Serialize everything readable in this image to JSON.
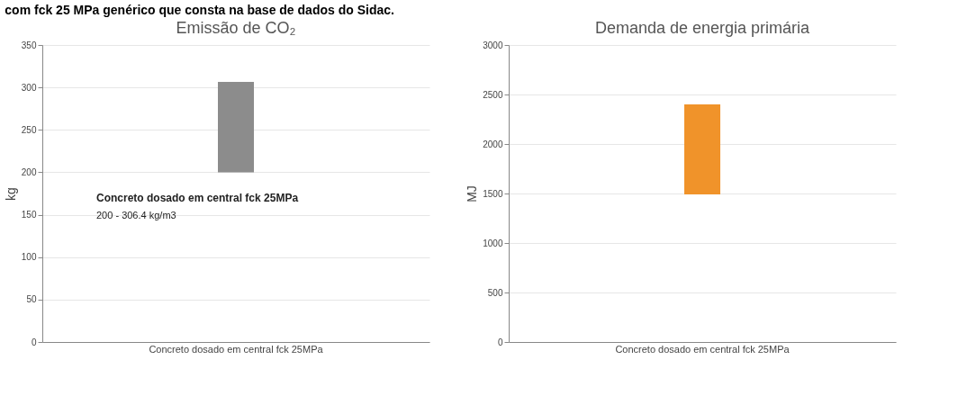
{
  "chart_data": [
    {
      "type": "bar",
      "title": "Emissão de CO₂",
      "ylabel": "kg",
      "categories": [
        "Concreto dosado em central fck 25MPa"
      ],
      "base": [
        200
      ],
      "values": [
        106.4
      ],
      "colors": [
        "#8c8c8c"
      ],
      "ylim": [
        0,
        350
      ],
      "yticks": [
        0,
        50,
        100,
        150,
        200,
        250,
        300,
        350
      ],
      "grid": "y",
      "annotations": [
        "com fck 25 MPa genérico que consta na base de dados do Sidac.",
        "Concreto dosado em central fck 25MPa",
        "200 - 306.4 kg/m3"
      ]
    },
    {
      "type": "bar",
      "title": "Demanda de energia primária",
      "ylabel": "MJ",
      "categories": [
        "Concreto dosado em central fck 25MPa"
      ],
      "base": [
        1490
      ],
      "values": [
        910
      ],
      "colors": [
        "#f0932a"
      ],
      "ylim": [
        0,
        3000
      ],
      "yticks": [
        0,
        500,
        1000,
        1500,
        2000,
        2500,
        3000
      ],
      "grid": "y"
    }
  ]
}
